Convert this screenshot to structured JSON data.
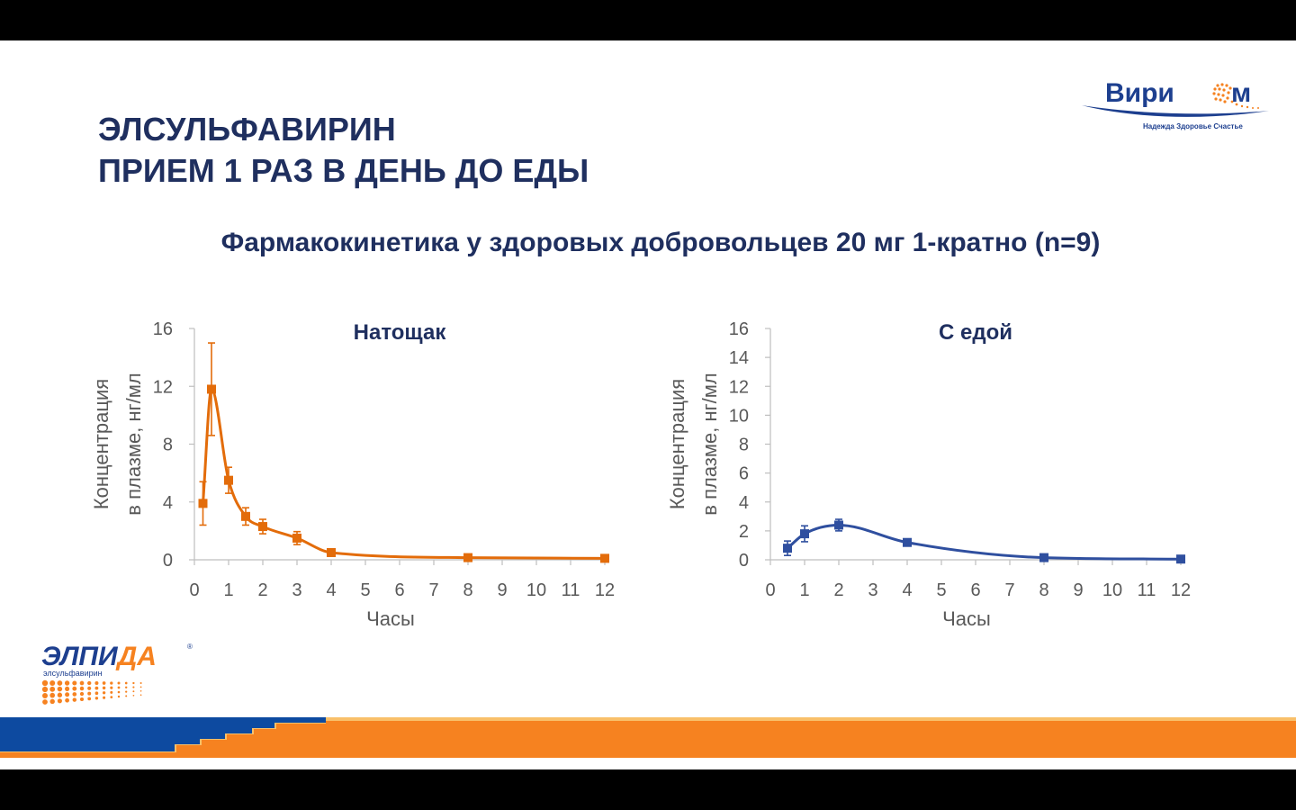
{
  "slide": {
    "title_lines": [
      "ЭЛСУЛЬФАВИРИН",
      "ПРИЕМ 1 РАЗ В ДЕНЬ ДО ЕДЫ"
    ],
    "subtitle": "Фармакокинетика у здоровых добровольцев 20 мг 1-кратно (n=9)",
    "logo_top": {
      "name": "Вири",
      "name_end": "м",
      "tagline": "Надежда Здоровье Счастье"
    },
    "logo_bottom": {
      "name_part1": "ЭЛПИ",
      "name_part2": "ДА",
      "registered": "®",
      "subtitle": "элсульфавирин"
    }
  },
  "colors": {
    "title": "#1f2f5f",
    "fasting_series": "#e36c0a",
    "fed_series": "#2f4f9f",
    "footer_blue": "#0d4aa0",
    "footer_orange": "#f68220"
  },
  "chart_data": [
    {
      "type": "line",
      "title": "Натощак",
      "xlabel": "Часы",
      "ylabel_lines": [
        "Концентрация",
        "в плазме, нг/мл"
      ],
      "xlim": [
        0,
        12
      ],
      "ylim": [
        0,
        16
      ],
      "xticks": [
        "0",
        "1",
        "2",
        "3",
        "4",
        "5",
        "6",
        "7",
        "8",
        "9",
        "10",
        "11",
        "12"
      ],
      "yticks": [
        "0",
        "4",
        "8",
        "12",
        "16"
      ],
      "grid": false,
      "series": [
        {
          "x": [
            0.25,
            0.5,
            1,
            1.5,
            2,
            3,
            4,
            8,
            12
          ],
          "y": [
            3.9,
            11.8,
            5.5,
            3.0,
            2.3,
            1.5,
            0.5,
            0.15,
            0.1
          ],
          "err": [
            1.5,
            3.2,
            0.9,
            0.6,
            0.5,
            0.45,
            0.1,
            0.05,
            0.05
          ]
        }
      ]
    },
    {
      "type": "line",
      "title": "С едой",
      "xlabel": "Часы",
      "ylabel_lines": [
        "Концентрация",
        "в плазме, нг/мл"
      ],
      "xlim": [
        0,
        12
      ],
      "ylim": [
        0,
        16
      ],
      "xticks": [
        "0",
        "1",
        "2",
        "3",
        "4",
        "5",
        "6",
        "7",
        "8",
        "9",
        "10",
        "11",
        "12"
      ],
      "yticks": [
        "0",
        "2",
        "4",
        "6",
        "8",
        "10",
        "12",
        "14",
        "16"
      ],
      "grid": false,
      "series": [
        {
          "x": [
            0.5,
            1,
            2,
            4,
            8,
            12
          ],
          "y": [
            0.8,
            1.8,
            2.4,
            1.2,
            0.15,
            0.05
          ],
          "err": [
            0.5,
            0.55,
            0.4,
            0.15,
            0.05,
            0.02
          ]
        }
      ]
    }
  ]
}
